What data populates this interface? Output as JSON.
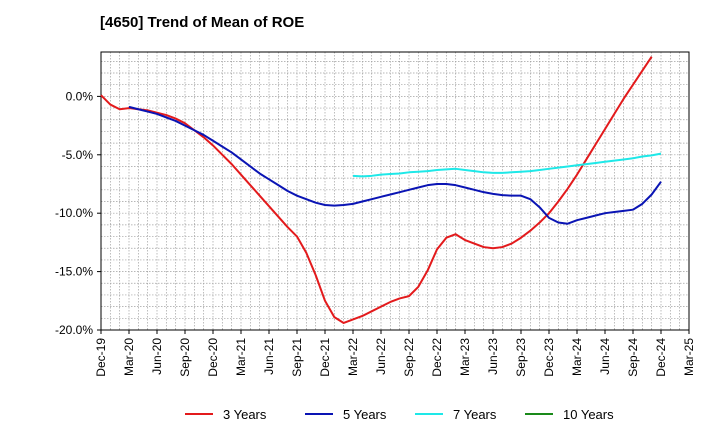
{
  "chart_data": {
    "type": "line",
    "title": "[4650]  Trend of Mean of ROE",
    "xlabel": "",
    "ylabel": "",
    "x_ticks": [
      "Dec-19",
      "Mar-20",
      "Jun-20",
      "Sep-20",
      "Dec-20",
      "Mar-21",
      "Jun-21",
      "Sep-21",
      "Dec-21",
      "Mar-22",
      "Jun-22",
      "Sep-22",
      "Dec-22",
      "Mar-23",
      "Jun-23",
      "Sep-23",
      "Dec-23",
      "Mar-24",
      "Jun-24",
      "Sep-24",
      "Dec-24",
      "Mar-25"
    ],
    "y_ticks": [
      0,
      -5,
      -10,
      -15,
      -20
    ],
    "y_tick_labels": [
      "0.0%",
      "-5.0%",
      "-10.0%",
      "-15.0%",
      "-20.0%"
    ],
    "ylim": [
      -20,
      3.8
    ],
    "grid": true,
    "legend_position": "bottom",
    "series": [
      {
        "name": "3 Years",
        "color": "#e31a1c",
        "points": [
          [
            "Dec-19",
            0.1
          ],
          [
            "Jan-20",
            -0.7
          ],
          [
            "Feb-20",
            -1.1
          ],
          [
            "Mar-20",
            -1.0
          ],
          [
            "Apr-20",
            -1.1
          ],
          [
            "May-20",
            -1.2
          ],
          [
            "Jun-20",
            -1.4
          ],
          [
            "Jul-20",
            -1.6
          ],
          [
            "Aug-20",
            -1.9
          ],
          [
            "Sep-20",
            -2.3
          ],
          [
            "Oct-20",
            -2.9
          ],
          [
            "Nov-20",
            -3.5
          ],
          [
            "Dec-20",
            -4.2
          ],
          [
            "Jan-21",
            -5.0
          ],
          [
            "Feb-21",
            -5.8
          ],
          [
            "Mar-21",
            -6.7
          ],
          [
            "Apr-21",
            -7.6
          ],
          [
            "May-21",
            -8.5
          ],
          [
            "Jun-21",
            -9.4
          ],
          [
            "Jul-21",
            -10.3
          ],
          [
            "Aug-21",
            -11.2
          ],
          [
            "Sep-21",
            -12.0
          ],
          [
            "Oct-21",
            -13.4
          ],
          [
            "Nov-21",
            -15.3
          ],
          [
            "Dec-21",
            -17.5
          ],
          [
            "Jan-22",
            -18.9
          ],
          [
            "Feb-22",
            -19.4
          ],
          [
            "Mar-22",
            -19.1
          ],
          [
            "Apr-22",
            -18.8
          ],
          [
            "May-22",
            -18.4
          ],
          [
            "Jun-22",
            -18.0
          ],
          [
            "Jul-22",
            -17.6
          ],
          [
            "Aug-22",
            -17.3
          ],
          [
            "Sep-22",
            -17.1
          ],
          [
            "Oct-22",
            -16.3
          ],
          [
            "Nov-22",
            -14.9
          ],
          [
            "Dec-22",
            -13.1
          ],
          [
            "Jan-23",
            -12.1
          ],
          [
            "Feb-23",
            -11.8
          ],
          [
            "Mar-23",
            -12.3
          ],
          [
            "Apr-23",
            -12.6
          ],
          [
            "May-23",
            -12.9
          ],
          [
            "Jun-23",
            -13.0
          ],
          [
            "Jul-23",
            -12.9
          ],
          [
            "Aug-23",
            -12.6
          ],
          [
            "Sep-23",
            -12.1
          ],
          [
            "Oct-23",
            -11.5
          ],
          [
            "Nov-23",
            -10.8
          ],
          [
            "Dec-23",
            -10.0
          ],
          [
            "Jan-24",
            -9.0
          ],
          [
            "Feb-24",
            -7.9
          ],
          [
            "Mar-24",
            -6.7
          ],
          [
            "Apr-24",
            -5.4
          ],
          [
            "May-24",
            -4.1
          ],
          [
            "Jun-24",
            -2.8
          ],
          [
            "Jul-24",
            -1.5
          ],
          [
            "Aug-24",
            -0.2
          ],
          [
            "Sep-24",
            1.0
          ],
          [
            "Oct-24",
            2.2
          ],
          [
            "Nov-24",
            3.4
          ]
        ]
      },
      {
        "name": "5 Years",
        "color": "#0a14b4",
        "points": [
          [
            "Mar-20",
            -0.9
          ],
          [
            "Apr-20",
            -1.1
          ],
          [
            "May-20",
            -1.3
          ],
          [
            "Jun-20",
            -1.5
          ],
          [
            "Jul-20",
            -1.8
          ],
          [
            "Aug-20",
            -2.1
          ],
          [
            "Sep-20",
            -2.5
          ],
          [
            "Oct-20",
            -2.9
          ],
          [
            "Nov-20",
            -3.3
          ],
          [
            "Dec-20",
            -3.8
          ],
          [
            "Jan-21",
            -4.3
          ],
          [
            "Feb-21",
            -4.8
          ],
          [
            "Mar-21",
            -5.4
          ],
          [
            "Apr-21",
            -6.0
          ],
          [
            "May-21",
            -6.6
          ],
          [
            "Jun-21",
            -7.1
          ],
          [
            "Jul-21",
            -7.6
          ],
          [
            "Aug-21",
            -8.1
          ],
          [
            "Sep-21",
            -8.5
          ],
          [
            "Oct-21",
            -8.8
          ],
          [
            "Nov-21",
            -9.1
          ],
          [
            "Dec-21",
            -9.3
          ],
          [
            "Jan-22",
            -9.35
          ],
          [
            "Feb-22",
            -9.3
          ],
          [
            "Mar-22",
            -9.2
          ],
          [
            "Apr-22",
            -9.0
          ],
          [
            "May-22",
            -8.8
          ],
          [
            "Jun-22",
            -8.6
          ],
          [
            "Jul-22",
            -8.4
          ],
          [
            "Aug-22",
            -8.2
          ],
          [
            "Sep-22",
            -8.0
          ],
          [
            "Oct-22",
            -7.8
          ],
          [
            "Nov-22",
            -7.6
          ],
          [
            "Dec-22",
            -7.5
          ],
          [
            "Jan-23",
            -7.5
          ],
          [
            "Feb-23",
            -7.6
          ],
          [
            "Mar-23",
            -7.8
          ],
          [
            "Apr-23",
            -8.0
          ],
          [
            "May-23",
            -8.2
          ],
          [
            "Jun-23",
            -8.35
          ],
          [
            "Jul-23",
            -8.45
          ],
          [
            "Aug-23",
            -8.5
          ],
          [
            "Sep-23",
            -8.5
          ],
          [
            "Oct-23",
            -8.8
          ],
          [
            "Nov-23",
            -9.5
          ],
          [
            "Dec-23",
            -10.4
          ],
          [
            "Jan-24",
            -10.8
          ],
          [
            "Feb-24",
            -10.9
          ],
          [
            "Mar-24",
            -10.6
          ],
          [
            "Apr-24",
            -10.4
          ],
          [
            "May-24",
            -10.2
          ],
          [
            "Jun-24",
            -10.0
          ],
          [
            "Jul-24",
            -9.9
          ],
          [
            "Aug-24",
            -9.8
          ],
          [
            "Sep-24",
            -9.7
          ],
          [
            "Oct-24",
            -9.2
          ],
          [
            "Nov-24",
            -8.4
          ],
          [
            "Dec-24",
            -7.3
          ]
        ]
      },
      {
        "name": "7 Years",
        "color": "#1ee8e8",
        "points": [
          [
            "Mar-22",
            -6.8
          ],
          [
            "Apr-22",
            -6.85
          ],
          [
            "May-22",
            -6.8
          ],
          [
            "Jun-22",
            -6.7
          ],
          [
            "Jul-22",
            -6.65
          ],
          [
            "Aug-22",
            -6.6
          ],
          [
            "Sep-22",
            -6.5
          ],
          [
            "Oct-22",
            -6.45
          ],
          [
            "Nov-22",
            -6.4
          ],
          [
            "Dec-22",
            -6.3
          ],
          [
            "Jan-23",
            -6.25
          ],
          [
            "Feb-23",
            -6.2
          ],
          [
            "Mar-23",
            -6.3
          ],
          [
            "Apr-23",
            -6.4
          ],
          [
            "May-23",
            -6.5
          ],
          [
            "Jun-23",
            -6.55
          ],
          [
            "Jul-23",
            -6.55
          ],
          [
            "Aug-23",
            -6.5
          ],
          [
            "Sep-23",
            -6.45
          ],
          [
            "Oct-23",
            -6.4
          ],
          [
            "Nov-23",
            -6.3
          ],
          [
            "Dec-23",
            -6.2
          ],
          [
            "Jan-24",
            -6.1
          ],
          [
            "Feb-24",
            -6.0
          ],
          [
            "Mar-24",
            -5.9
          ],
          [
            "Apr-24",
            -5.8
          ],
          [
            "May-24",
            -5.7
          ],
          [
            "Jun-24",
            -5.6
          ],
          [
            "Jul-24",
            -5.5
          ],
          [
            "Aug-24",
            -5.4
          ],
          [
            "Sep-24",
            -5.3
          ],
          [
            "Oct-24",
            -5.15
          ],
          [
            "Nov-24",
            -5.05
          ],
          [
            "Dec-24",
            -4.9
          ]
        ]
      },
      {
        "name": "10 Years",
        "color": "#1a8a1a",
        "points": []
      }
    ]
  }
}
